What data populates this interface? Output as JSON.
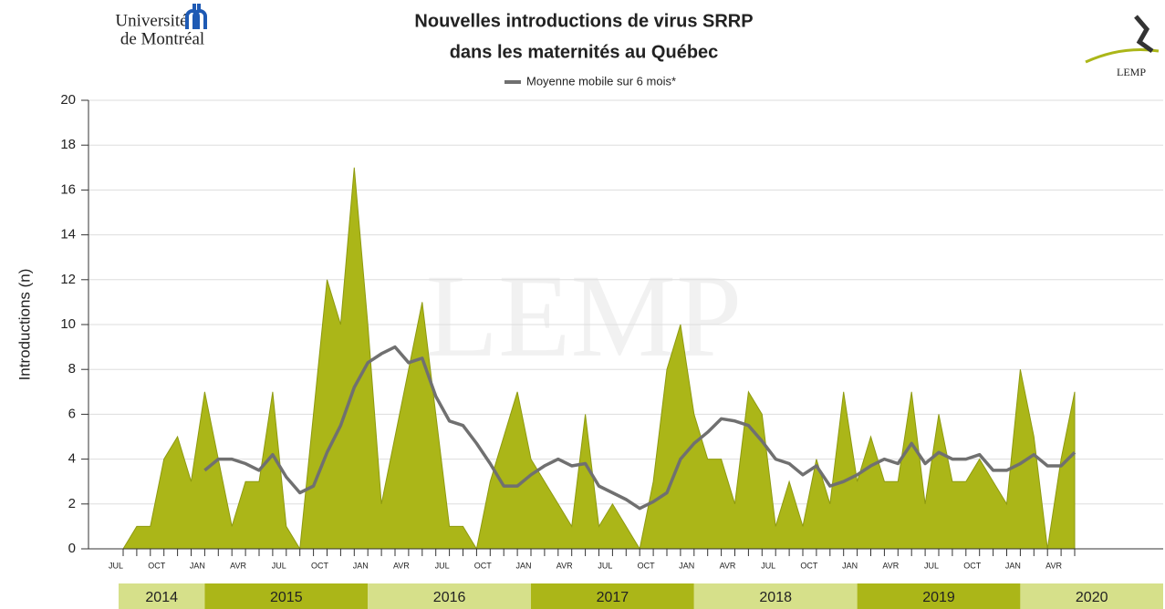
{
  "header": {
    "university_lines": [
      "Université",
      "de Montréal"
    ],
    "logo_right": "LEMP"
  },
  "chart_data": {
    "type": "area",
    "title_lines": [
      "Nouvelles introductions de virus SRRP",
      "dans les maternités au Québec"
    ],
    "ylabel": "Introductions (n)",
    "watermark": "LEMP",
    "categories": [
      "JUL",
      null,
      null,
      "OCT",
      null,
      null,
      "JAN",
      null,
      null,
      "AVR",
      null,
      null,
      "JUL",
      null,
      null,
      "OCT",
      null,
      null,
      "JAN",
      null,
      null,
      "AVR",
      null,
      null,
      "JUL",
      null,
      null,
      "OCT",
      null,
      null,
      "JAN",
      null,
      null,
      "AVR",
      null,
      null,
      "JUL",
      null,
      null,
      "OCT",
      null,
      null,
      "JAN",
      null,
      null,
      "AVR",
      null,
      null,
      "JUL",
      null,
      null,
      "OCT",
      null,
      null,
      "JAN",
      null,
      null,
      "AVR",
      null,
      null,
      "JUL",
      null,
      null,
      "OCT",
      null,
      null,
      "JAN",
      null,
      null,
      "AVR",
      null
    ],
    "years": [
      "2014",
      "2015",
      "2016",
      "2017",
      "2018",
      "2019",
      "2020"
    ],
    "series": [
      {
        "color": "#abb618",
        "values": [
          0,
          1,
          1,
          4,
          5,
          3,
          7,
          4,
          1,
          3,
          3,
          7,
          1,
          0,
          6,
          12,
          10,
          17,
          10,
          2,
          5,
          8,
          11,
          6,
          1,
          1,
          0,
          3,
          5,
          7,
          4,
          3,
          2,
          1,
          6,
          1,
          2,
          1,
          0,
          3,
          8,
          10,
          6,
          4,
          4,
          2,
          7,
          6,
          1,
          3,
          1,
          4,
          2,
          7,
          3,
          5,
          3,
          3,
          7,
          2,
          6,
          3,
          3,
          4,
          3,
          2,
          8,
          5,
          0,
          4,
          7
        ]
      },
      {
        "name": "Moyenne mobile sur 6 mois*",
        "color": "#707070",
        "axis": "y",
        "values": [
          null,
          null,
          null,
          null,
          null,
          null,
          3.5,
          4,
          4,
          3.8,
          3.5,
          4.2,
          3.2,
          2.5,
          2.8,
          4.3,
          5.5,
          7.2,
          8.3,
          8.7,
          9,
          8.3,
          8.5,
          6.8,
          5.7,
          5.5,
          4.7,
          3.8,
          2.8,
          2.8,
          3.3,
          3.7,
          4,
          3.7,
          3.8,
          2.8,
          2.5,
          2.2,
          1.8,
          2.1,
          2.5,
          4,
          4.7,
          5.2,
          5.8,
          5.7,
          5.5,
          4.8,
          4,
          3.8,
          3.3,
          3.7,
          2.8,
          3,
          3.3,
          3.7,
          4,
          3.8,
          4.7,
          3.8,
          4.3,
          4,
          4,
          4.2,
          3.5,
          3.5,
          3.8,
          4.2,
          3.7,
          3.7,
          4.3
        ]
      }
    ],
    "ylim": [
      0,
      20
    ],
    "yticks": [
      0,
      2,
      4,
      6,
      8,
      10,
      12,
      14,
      16,
      18,
      20
    ],
    "grid": true,
    "year_colors": [
      "#d6e08a",
      "#abb618"
    ]
  }
}
